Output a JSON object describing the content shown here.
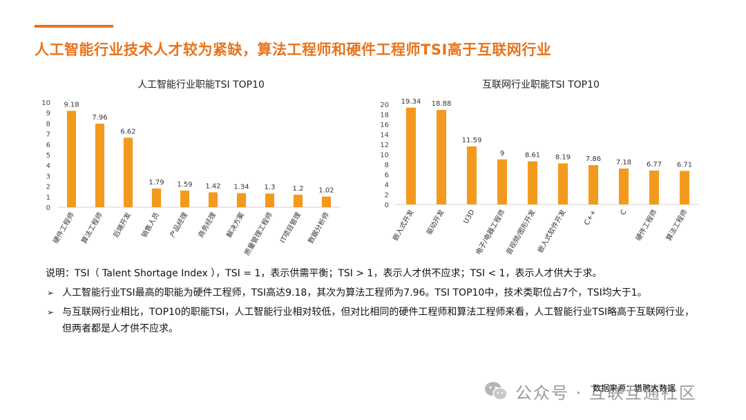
{
  "header": {
    "title": "人工智能行业技术人才较为紧缺，算法工程师和硬件工程师TSI高于互联网行业"
  },
  "chart_data": [
    {
      "type": "bar",
      "title": "人工智能行业职能TSI TOP10",
      "categories": [
        "硬件工程师",
        "算法工程师",
        "后端开发",
        "销售人员",
        "产品经理",
        "商务经理",
        "解决方案",
        "质量管理工程师",
        "IT项目管理",
        "数据分析师"
      ],
      "values": [
        9.18,
        7.96,
        6.62,
        1.79,
        1.59,
        1.42,
        1.34,
        1.3,
        1.2,
        1.02
      ],
      "labels": [
        "9.18",
        "7.96",
        "6.62",
        "1.79",
        "1.59",
        "1.42",
        "1.34",
        "1.3",
        "1.2",
        "1.02"
      ],
      "ylim": [
        0,
        10
      ],
      "yticks": [
        0,
        1,
        2,
        3,
        4,
        5,
        6,
        7,
        8,
        9,
        10
      ],
      "color": "#f39a1e"
    },
    {
      "type": "bar",
      "title": "互联网行业职能TSI TOP10",
      "categories": [
        "嵌入式开发",
        "驱动开发",
        "U3D",
        "电子/电器工程师",
        "音视频/图形开发",
        "嵌入式软件开发",
        "C++",
        "C",
        "硬件工程师",
        "算法工程师"
      ],
      "values": [
        19.34,
        18.88,
        11.59,
        9,
        8.61,
        8.19,
        7.86,
        7.18,
        6.77,
        6.71
      ],
      "labels": [
        "19.34",
        "18.88",
        "11.59",
        "9",
        "8.61",
        "8.19",
        "7.86",
        "7.18",
        "6.77",
        "6.71"
      ],
      "ylim": [
        0,
        20
      ],
      "yticks": [
        0,
        2,
        4,
        6,
        8,
        10,
        12,
        14,
        16,
        18,
        20
      ],
      "color": "#f39a1e"
    }
  ],
  "notes": {
    "intro": "说明：TSI（ Talent Shortage Index ），TSI = 1，表示供需平衡；TSI > 1，表示人才供不应求；TSI < 1，表示人才供大于求。",
    "bullet_symbol": "➢",
    "bullet1": "人工智能行业TSI最高的职能为硬件工程师，TSI高达9.18，其次为算法工程师为7.96。TSI TOP10中，技术类职位占7个，TSI均大于1。",
    "bullet2": "与互联网行业相比，TOP10的职能TSI，人工智能行业相对较低，但对比相同的硬件工程师和算法工程师来看，人工智能行业TSI略高于互联网行业，但两者都是人才供不应求。"
  },
  "watermark": {
    "text": "公众号 · 互联互通社区"
  },
  "source": {
    "text": "数据来源：猎聘大数据"
  }
}
